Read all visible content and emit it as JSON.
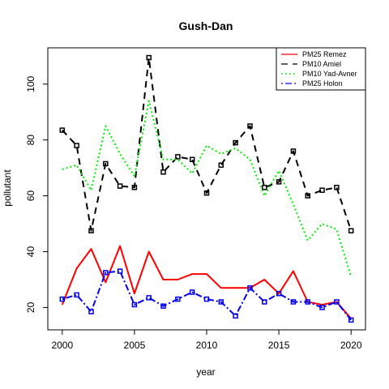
{
  "chart_data": {
    "type": "line",
    "title": "Gush-Dan",
    "xlabel": "year",
    "ylabel": "pollutant",
    "xlim": [
      1999,
      2021
    ],
    "ylim": [
      12,
      113
    ],
    "xticks": [
      2000,
      2005,
      2010,
      2015,
      2020
    ],
    "yticks": [
      20,
      40,
      60,
      80,
      100
    ],
    "grid": false,
    "legend_position": "top-right",
    "x": [
      2000,
      2001,
      2002,
      2003,
      2004,
      2005,
      2006,
      2007,
      2008,
      2009,
      2010,
      2011,
      2012,
      2013,
      2014,
      2015,
      2016,
      2017,
      2018,
      2019,
      2020
    ],
    "series": [
      {
        "name": "PM25 Remez",
        "color": "#ff0000",
        "linestyle": "solid",
        "markers": false,
        "values": [
          21,
          34,
          41,
          29,
          42,
          25,
          40,
          30,
          30,
          32,
          32,
          27,
          27,
          27,
          30,
          25,
          33,
          22,
          21,
          22,
          16
        ]
      },
      {
        "name": "PM10 Amiel",
        "color": "#000000",
        "linestyle": "dashed",
        "markers": true,
        "values": [
          83.5,
          78,
          47.5,
          71.5,
          63.5,
          63,
          109.5,
          68.5,
          74,
          73,
          61,
          71,
          79,
          85,
          63,
          65,
          76,
          60,
          62,
          63,
          47.5
        ]
      },
      {
        "name": "PM10 Yad-Avner",
        "color": "#00ee00",
        "linestyle": "dotted",
        "markers": false,
        "values": [
          69.5,
          71,
          62,
          85,
          75,
          67,
          94,
          73,
          73,
          68,
          78,
          75,
          77,
          73,
          60,
          69,
          57,
          44,
          50,
          48,
          31
        ]
      },
      {
        "name": "PM25 Holon",
        "color": "#0000ee",
        "linestyle": "dotdash",
        "markers": true,
        "values": [
          23,
          24.5,
          18.5,
          32.5,
          33,
          21,
          23.5,
          20.5,
          23,
          25.5,
          23,
          22,
          17,
          27,
          22,
          25,
          22,
          22,
          20,
          22,
          15.5
        ]
      }
    ]
  }
}
